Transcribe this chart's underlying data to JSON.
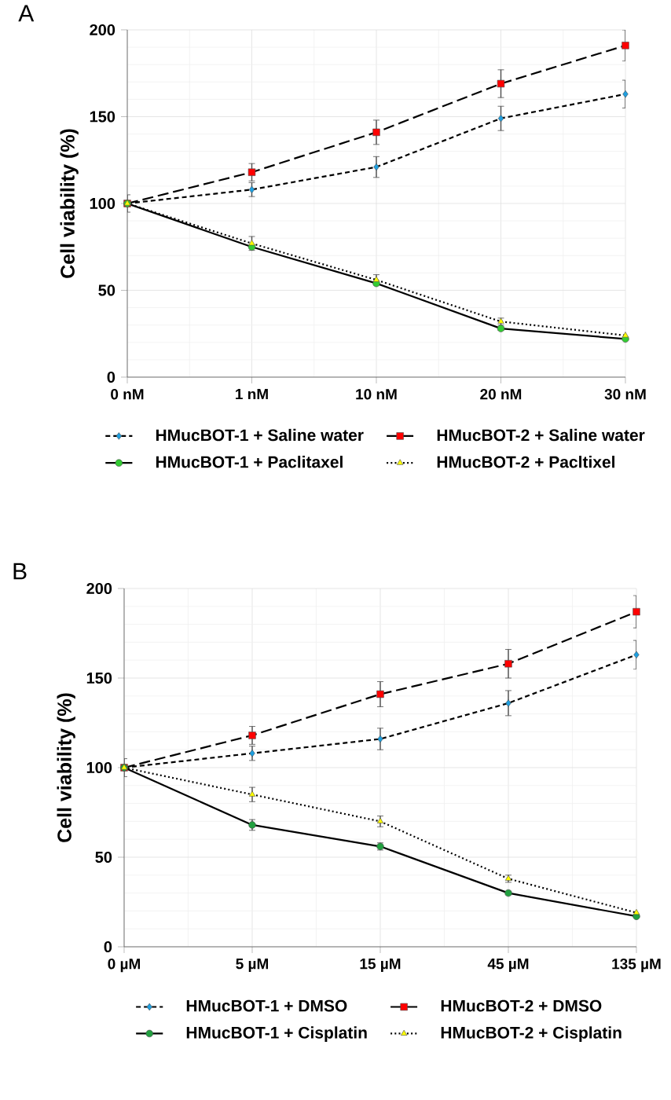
{
  "chart_data": [
    {
      "type": "line",
      "title": "A",
      "ylabel": "Cell viability (%)",
      "categories": [
        "0 nM",
        "1 nM",
        "10 nM",
        "20 nM",
        "30 nM"
      ],
      "ylim": [
        0,
        200
      ],
      "yticks": [
        0,
        50,
        100,
        150,
        200
      ],
      "grid": true,
      "legend": "bottom",
      "series": [
        {
          "name": "HMucBOT-1 + Saline water",
          "color": "#1e9fe0",
          "marker": "diamond",
          "line_style": "dashed",
          "values": [
            100,
            108,
            121,
            149,
            163
          ],
          "errors": [
            5,
            4,
            6,
            7,
            8
          ]
        },
        {
          "name": "HMucBOT-2 + Saline water",
          "color": "#ff0000",
          "marker": "square",
          "line_style": "dashed",
          "values": [
            100,
            118,
            141,
            169,
            191
          ],
          "errors": [
            null,
            5,
            7,
            8,
            9
          ]
        },
        {
          "name": "HMucBOT-1 + Paclitaxel",
          "color": "#33cc33",
          "marker": "circle",
          "line_style": "solid",
          "values": [
            100,
            75,
            54,
            28,
            22
          ],
          "errors": [
            null,
            null,
            null,
            1,
            null
          ]
        },
        {
          "name": "HMucBOT-2 + Pacltixel",
          "color": "#ffff00",
          "marker": "triangle",
          "line_style": "dotted",
          "values": [
            100,
            77,
            56,
            32,
            24
          ],
          "errors": [
            null,
            4,
            3,
            2,
            null
          ]
        }
      ]
    },
    {
      "type": "line",
      "title": "B",
      "ylabel": "Cell viability (%)",
      "categories": [
        "0 µM",
        "5 µM",
        "15 µM",
        "45 µM",
        "135 µM"
      ],
      "ylim": [
        0,
        200
      ],
      "yticks": [
        0,
        50,
        100,
        150,
        200
      ],
      "grid": true,
      "legend": "bottom",
      "series": [
        {
          "name": "HMucBOT-1 + DMSO",
          "color": "#1e9fe0",
          "marker": "diamond",
          "line_style": "dashed",
          "values": [
            100,
            108,
            116,
            136,
            163
          ],
          "errors": [
            5,
            4,
            6,
            7,
            8
          ]
        },
        {
          "name": "HMucBOT-2 + DMSO",
          "color": "#ff0000",
          "marker": "square",
          "line_style": "dashed",
          "values": [
            100,
            118,
            141,
            158,
            187
          ],
          "errors": [
            null,
            5,
            7,
            8,
            9
          ]
        },
        {
          "name": "HMucBOT-1 + Cisplatin",
          "color": "#22a040",
          "marker": "circle",
          "line_style": "solid",
          "values": [
            100,
            68,
            56,
            30,
            17
          ],
          "errors": [
            null,
            3,
            2,
            1,
            null
          ]
        },
        {
          "name": "HMucBOT-2 + Cisplatin",
          "color": "#ffff00",
          "marker": "triangle",
          "line_style": "dotted",
          "values": [
            100,
            85,
            70,
            38,
            19
          ],
          "errors": [
            null,
            4,
            3,
            2,
            null
          ]
        }
      ]
    }
  ]
}
